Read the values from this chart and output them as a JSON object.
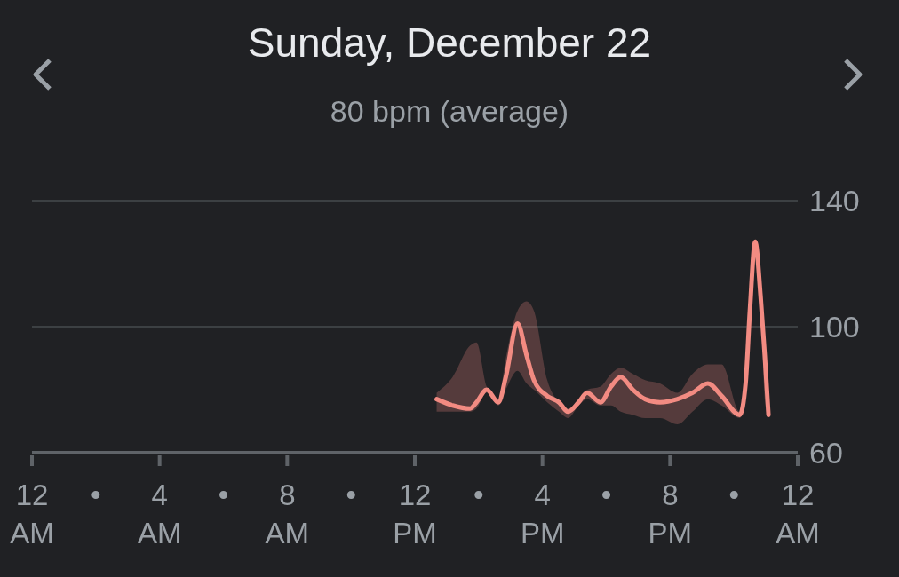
{
  "chart_data": {
    "type": "line",
    "title": "Sunday, December 22",
    "subtitle": "80 bpm (average)",
    "x": [
      "--12-22T12:41",
      "--12-22T13:11",
      "--12-22T13:44",
      "--12-22T13:56",
      "--12-22T14:15",
      "--12-22T14:37",
      "--12-22T14:51",
      "--12-22T15:13",
      "--12-22T15:30",
      "--12-22T15:44",
      "--12-22T16:09",
      "--12-22T16:31",
      "--12-22T16:48",
      "--12-22T17:08",
      "--12-22T17:24",
      "--12-22T17:49",
      "--12-22T18:09",
      "--12-22T18:27",
      "--12-22T18:50",
      "--12-22T19:13",
      "--12-22T19:41",
      "--12-22T20:14",
      "--12-22T20:42",
      "--12-22T21:11",
      "--12-22T21:37",
      "--12-22T22:11",
      "--12-22T22:22",
      "--12-22T22:30",
      "--12-22T22:40",
      "--12-22T22:50",
      "--12-22T22:58",
      "--12-22T23:05"
    ],
    "series": [
      {
        "color": "#f28b82",
        "values": [
          77,
          75,
          74,
          76,
          80,
          76,
          84,
          101,
          91,
          83,
          78,
          76,
          73,
          76,
          79,
          76,
          81,
          84,
          80,
          77,
          76,
          77,
          79,
          82,
          78,
          72,
          82,
          105,
          127,
          110,
          91,
          72
        ],
        "lower": [
          73,
          73,
          73,
          74,
          79,
          75,
          80,
          86,
          82,
          80,
          76,
          73,
          71,
          75,
          77,
          75,
          75,
          73,
          72,
          71,
          71,
          69,
          73,
          77,
          75,
          71,
          80,
          104,
          126,
          109,
          77,
          71
        ],
        "upper": [
          79,
          84,
          94,
          95,
          81,
          77,
          90,
          105,
          108,
          105,
          83,
          76,
          74,
          77,
          80,
          81,
          85,
          87,
          85,
          83,
          82,
          79,
          85,
          88,
          88,
          73,
          82,
          106,
          127,
          111,
          92,
          73
        ]
      }
    ],
    "xlim": [
      "--12-22T00:00",
      "--12-23T00:00"
    ],
    "xticks": [
      {
        "value": "--12-22T00:00",
        "label": "12 AM"
      },
      {
        "value": "--12-22T02:00",
        "label": "•"
      },
      {
        "value": "--12-22T04:00",
        "label": "4 AM"
      },
      {
        "value": "--12-22T06:00",
        "label": "•"
      },
      {
        "value": "--12-22T08:00",
        "label": "8 AM"
      },
      {
        "value": "--12-22T10:00",
        "label": "•"
      },
      {
        "value": "--12-22T12:00",
        "label": "12 PM"
      },
      {
        "value": "--12-22T14:00",
        "label": "•"
      },
      {
        "value": "--12-22T16:00",
        "label": "4 PM"
      },
      {
        "value": "--12-22T18:00",
        "label": "•"
      },
      {
        "value": "--12-22T20:00",
        "label": "8 PM"
      },
      {
        "value": "--12-22T22:00",
        "label": "•"
      },
      {
        "value": "--12-23T00:00",
        "label": "12 AM"
      }
    ],
    "ylim": [
      60,
      140
    ],
    "yticks": [
      60,
      100,
      140
    ],
    "grid": "y",
    "marker": "none",
    "line_style": "solid"
  }
}
